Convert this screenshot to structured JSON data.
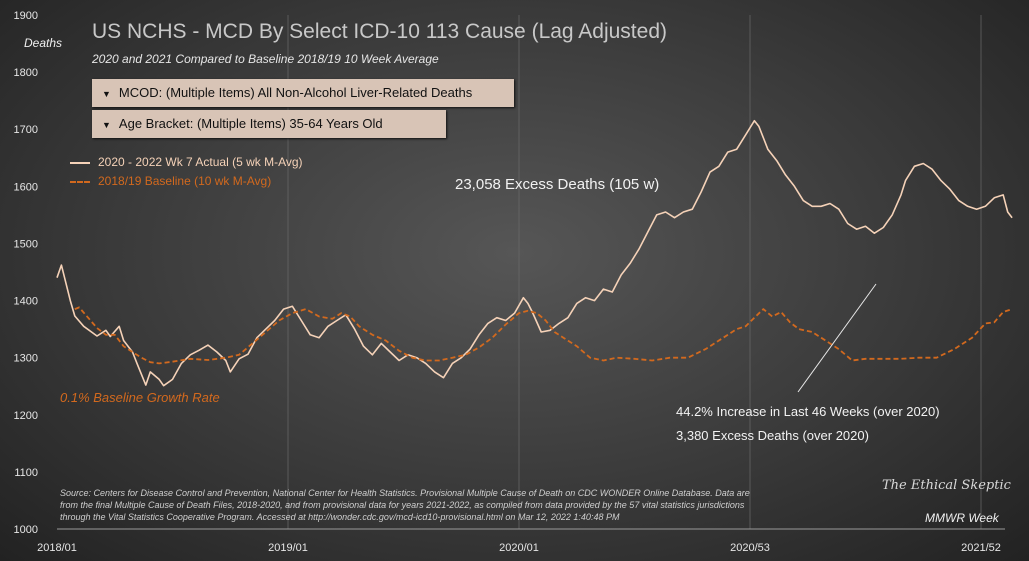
{
  "chart_data": {
    "type": "line",
    "title": "US NCHS - MCD By Select ICD-10 113 Cause (Lag Adjusted)",
    "subtitle": "2020  and 2021  Compared to Baseline 2018/19  10 Week Average",
    "ylabel": "Deaths",
    "xlabel": "MMWR Week",
    "ylim": [
      1000,
      1900
    ],
    "yticks": [
      1000,
      1100,
      1200,
      1300,
      1400,
      1500,
      1600,
      1700,
      1800,
      1900
    ],
    "xtick_labels": [
      {
        "week_index": 0,
        "label": "2018/01"
      },
      {
        "week_index": 52,
        "label": "2019/01"
      },
      {
        "week_index": 104,
        "label": "2020/01"
      },
      {
        "week_index": 156,
        "label": "2020/53"
      },
      {
        "week_index": 208,
        "label": "2021/52"
      }
    ],
    "series": [
      {
        "name": "2020  - 2022  Wk 7 Actual (5 wk M-Avg)",
        "color": "#f5d2b8",
        "style": "solid",
        "keypoints": [
          [
            0,
            1440
          ],
          [
            1,
            1462
          ],
          [
            3,
            1400
          ],
          [
            4,
            1373
          ],
          [
            6,
            1355
          ],
          [
            9,
            1338
          ],
          [
            11,
            1348
          ],
          [
            12,
            1337
          ],
          [
            14,
            1355
          ],
          [
            15,
            1330
          ],
          [
            17,
            1310
          ],
          [
            18,
            1290
          ],
          [
            20,
            1252
          ],
          [
            21,
            1275
          ],
          [
            23,
            1262
          ],
          [
            24,
            1251
          ],
          [
            26,
            1262
          ],
          [
            28,
            1290
          ],
          [
            30,
            1305
          ],
          [
            32,
            1313
          ],
          [
            34,
            1322
          ],
          [
            36,
            1310
          ],
          [
            38,
            1295
          ],
          [
            39,
            1275
          ],
          [
            41,
            1298
          ],
          [
            43,
            1306
          ],
          [
            45,
            1335
          ],
          [
            47,
            1350
          ],
          [
            49,
            1365
          ],
          [
            51,
            1385
          ],
          [
            53,
            1390
          ],
          [
            55,
            1365
          ],
          [
            57,
            1340
          ],
          [
            59,
            1335
          ],
          [
            61,
            1355
          ],
          [
            63,
            1365
          ],
          [
            65,
            1375
          ],
          [
            67,
            1350
          ],
          [
            69,
            1320
          ],
          [
            71,
            1305
          ],
          [
            73,
            1325
          ],
          [
            75,
            1310
          ],
          [
            77,
            1295
          ],
          [
            79,
            1305
          ],
          [
            81,
            1300
          ],
          [
            83,
            1290
          ],
          [
            85,
            1275
          ],
          [
            87,
            1265
          ],
          [
            89,
            1290
          ],
          [
            91,
            1300
          ],
          [
            93,
            1315
          ],
          [
            95,
            1340
          ],
          [
            97,
            1360
          ],
          [
            99,
            1370
          ],
          [
            101,
            1365
          ],
          [
            103,
            1378
          ],
          [
            105,
            1405
          ],
          [
            106,
            1395
          ],
          [
            107,
            1380
          ],
          [
            109,
            1345
          ],
          [
            111,
            1348
          ],
          [
            113,
            1360
          ],
          [
            115,
            1370
          ],
          [
            117,
            1395
          ],
          [
            119,
            1405
          ],
          [
            121,
            1400
          ],
          [
            123,
            1420
          ],
          [
            125,
            1415
          ],
          [
            127,
            1445
          ],
          [
            129,
            1465
          ],
          [
            131,
            1490
          ],
          [
            133,
            1520
          ],
          [
            135,
            1550
          ],
          [
            137,
            1555
          ],
          [
            139,
            1545
          ],
          [
            141,
            1555
          ],
          [
            143,
            1560
          ],
          [
            145,
            1590
          ],
          [
            147,
            1625
          ],
          [
            149,
            1635
          ],
          [
            151,
            1660
          ],
          [
            153,
            1665
          ],
          [
            155,
            1690
          ],
          [
            157,
            1715
          ],
          [
            158,
            1705
          ],
          [
            160,
            1665
          ],
          [
            162,
            1645
          ],
          [
            164,
            1620
          ],
          [
            166,
            1600
          ],
          [
            168,
            1575
          ],
          [
            170,
            1565
          ],
          [
            172,
            1565
          ],
          [
            174,
            1570
          ],
          [
            176,
            1560
          ],
          [
            178,
            1535
          ],
          [
            180,
            1525
          ],
          [
            182,
            1530
          ],
          [
            184,
            1518
          ],
          [
            186,
            1528
          ],
          [
            188,
            1550
          ],
          [
            190,
            1585
          ],
          [
            191,
            1610
          ],
          [
            193,
            1635
          ],
          [
            195,
            1640
          ],
          [
            197,
            1630
          ],
          [
            199,
            1610
          ],
          [
            201,
            1595
          ],
          [
            203,
            1575
          ],
          [
            205,
            1565
          ],
          [
            207,
            1560
          ],
          [
            209,
            1565
          ],
          [
            211,
            1580
          ],
          [
            213,
            1585
          ],
          [
            214,
            1555
          ],
          [
            215,
            1545
          ]
        ]
      },
      {
        "name": "2018/19  Baseline (10 wk M-Avg)",
        "color": "#d2691e",
        "style": "dashed",
        "keypoints": [
          [
            4,
            1385
          ],
          [
            5,
            1388
          ],
          [
            7,
            1370
          ],
          [
            9,
            1352
          ],
          [
            11,
            1340
          ],
          [
            13,
            1340
          ],
          [
            15,
            1320
          ],
          [
            17,
            1310
          ],
          [
            19,
            1300
          ],
          [
            21,
            1292
          ],
          [
            23,
            1290
          ],
          [
            26,
            1293
          ],
          [
            30,
            1298
          ],
          [
            34,
            1296
          ],
          [
            38,
            1300
          ],
          [
            41,
            1305
          ],
          [
            44,
            1325
          ],
          [
            47,
            1345
          ],
          [
            50,
            1365
          ],
          [
            53,
            1378
          ],
          [
            56,
            1385
          ],
          [
            59,
            1372
          ],
          [
            62,
            1368
          ],
          [
            64,
            1378
          ],
          [
            66,
            1372
          ],
          [
            68,
            1355
          ],
          [
            71,
            1340
          ],
          [
            74,
            1330
          ],
          [
            77,
            1312
          ],
          [
            80,
            1300
          ],
          [
            83,
            1295
          ],
          [
            86,
            1295
          ],
          [
            89,
            1300
          ],
          [
            92,
            1305
          ],
          [
            95,
            1318
          ],
          [
            98,
            1335
          ],
          [
            101,
            1358
          ],
          [
            104,
            1378
          ],
          [
            106,
            1382
          ],
          [
            108,
            1378
          ],
          [
            110,
            1365
          ],
          [
            112,
            1345
          ],
          [
            114,
            1335
          ],
          [
            117,
            1320
          ],
          [
            120,
            1300
          ],
          [
            123,
            1295
          ],
          [
            126,
            1300
          ],
          [
            130,
            1298
          ],
          [
            134,
            1295
          ],
          [
            138,
            1300
          ],
          [
            142,
            1300
          ],
          [
            146,
            1315
          ],
          [
            150,
            1335
          ],
          [
            153,
            1350
          ],
          [
            155,
            1355
          ],
          [
            157,
            1370
          ],
          [
            159,
            1385
          ],
          [
            161,
            1372
          ],
          [
            163,
            1380
          ],
          [
            165,
            1362
          ],
          [
            167,
            1350
          ],
          [
            170,
            1345
          ],
          [
            173,
            1330
          ],
          [
            176,
            1315
          ],
          [
            179,
            1295
          ],
          [
            182,
            1298
          ],
          [
            186,
            1298
          ],
          [
            190,
            1298
          ],
          [
            194,
            1300
          ],
          [
            198,
            1300
          ],
          [
            202,
            1315
          ],
          [
            206,
            1335
          ],
          [
            209,
            1360
          ],
          [
            211,
            1362
          ],
          [
            213,
            1380
          ],
          [
            215,
            1385
          ]
        ]
      }
    ],
    "annotations": {
      "excess_total": "23,058 Excess  Deaths  (105 w)",
      "baseline_growth": "0.1% Baseline Growth Rate",
      "increase": "44.2%  Increase in Last 46 Weeks (over 2020)",
      "excess_2020": "3,380  Excess Deaths (over 2020)"
    }
  },
  "filters": {
    "mcod": "MCOD:  (Multiple Items) All Non-Alcohol Liver-Related Deaths",
    "age": "Age Bracket:  (Multiple Items) 35-64 Years Old",
    "arrow": "▼"
  },
  "source": "Source: Centers for Disease Control and Prevention, National Center for Health Statistics. Provisional Multiple Cause of Death on CDC WONDER Online Database. Data are from the final Multiple Cause of Death Files, 2018-2020, and from provisional data for years 2021-2022, as compiled from data provided by the 57 vital statistics jurisdictions through the Vital Statistics Cooperative Program. Accessed at http://wonder.cdc.gov/mcd-icd10-provisional.html on Mar 12, 2022 1:40:48 PM",
  "brand": "The Ethical Skeptic",
  "colors": {
    "actual": "#f5d2b8",
    "baseline": "#d2691e",
    "text": "#f0f0f0"
  }
}
